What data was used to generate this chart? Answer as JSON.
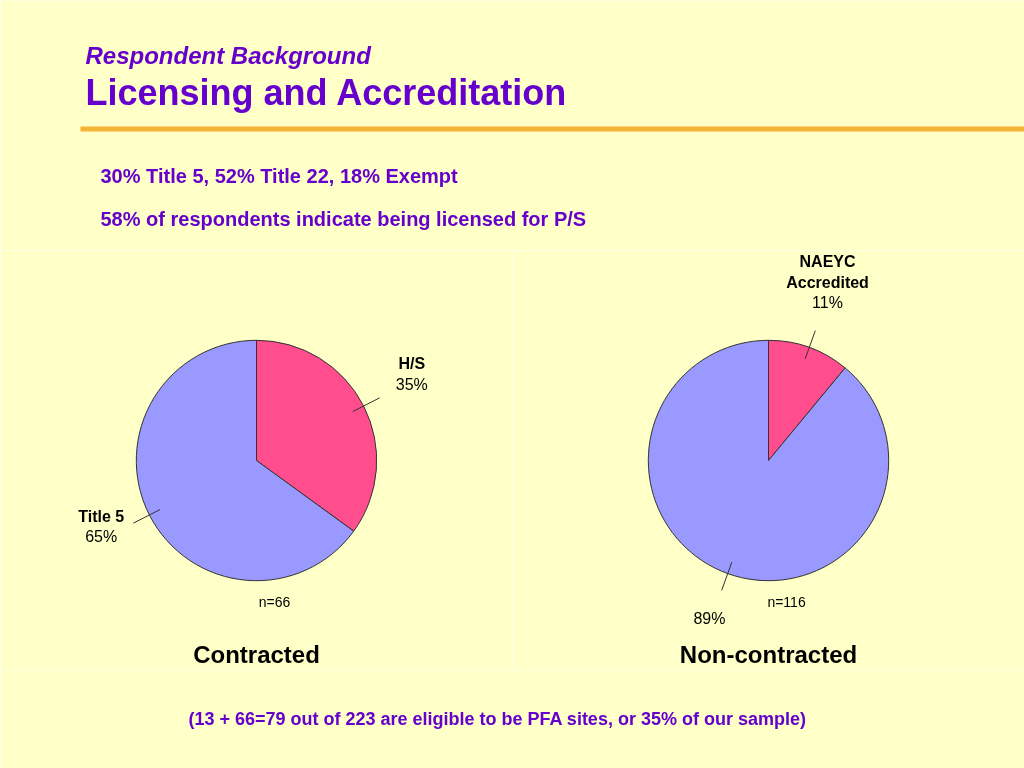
{
  "chart_data": [
    {
      "type": "other",
      "subtitle": "Respondent Background",
      "title": "Licensing and Accreditation",
      "annotations": [
        "30% Title 5, 52% Title 22, 18% Exempt",
        "58% of respondents indicate being licensed for P/S",
        "(13 + 66=79 out of 223 are eligible to be PFA sites, or 35% of our sample)"
      ]
    },
    {
      "type": "pie",
      "title": "Contracted",
      "categories": [
        "H/S",
        "Title 5"
      ],
      "values": [
        35,
        65
      ],
      "value_labels": [
        "35%",
        "65%"
      ],
      "colors": [
        "#ff4d8d",
        "#9999ff"
      ],
      "annotations": [
        "n=66"
      ]
    },
    {
      "type": "pie",
      "title": "Non-contracted",
      "categories": [
        "NAEYC Accredited",
        null
      ],
      "values": [
        11,
        89
      ],
      "value_labels": [
        "11%",
        "89%"
      ],
      "colors": [
        "#ff4d8d",
        "#9999ff"
      ],
      "annotations": [
        "n=116"
      ]
    }
  ]
}
